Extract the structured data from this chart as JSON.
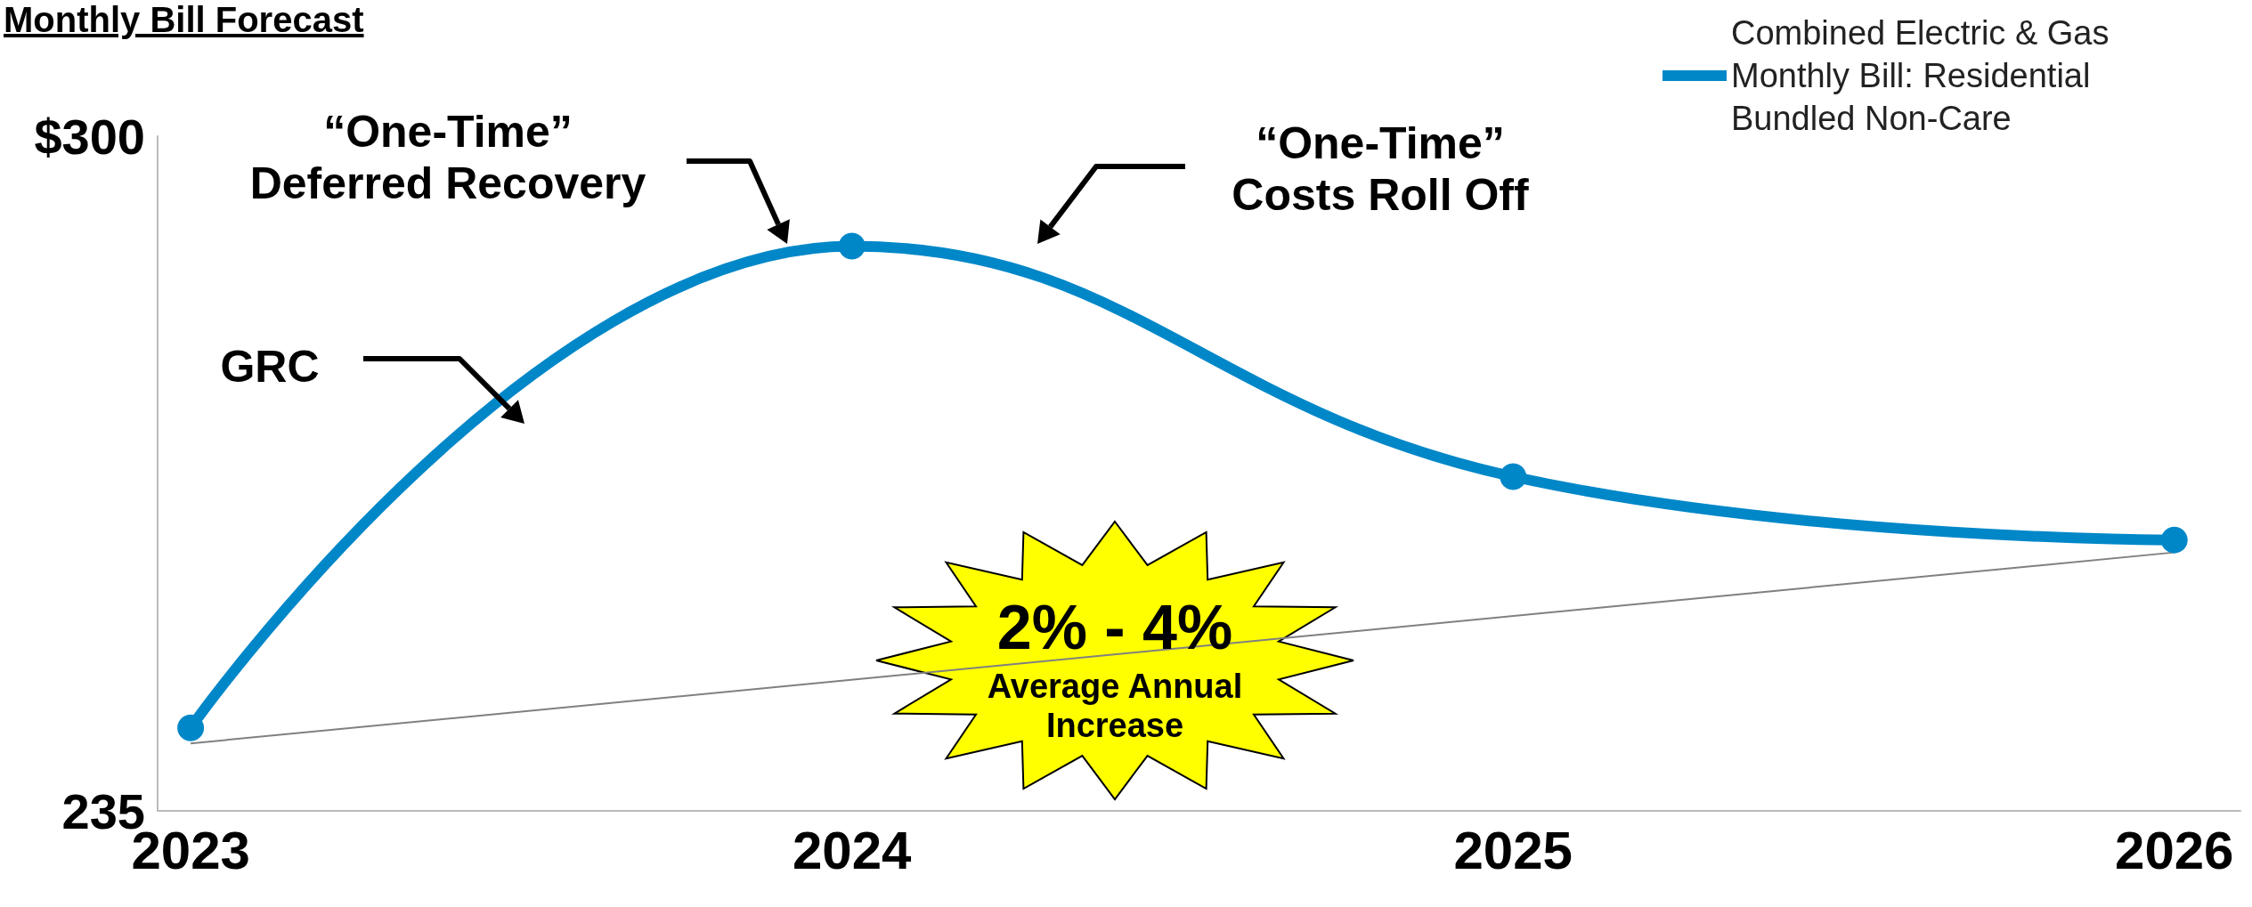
{
  "chart_data": {
    "type": "line",
    "title": "Monthly Bill Forecast",
    "x": [
      2023,
      2024,
      2025,
      2026
    ],
    "xlim": [
      2022.95,
      2026.1
    ],
    "xticks": [
      2023,
      2024,
      2025,
      2026
    ],
    "ylim": [
      235,
      300
    ],
    "yticks": [
      235,
      {
        "value": 300,
        "label": "$300"
      }
    ],
    "grid": false,
    "legend": "top right",
    "marker": "circle",
    "series": [
      {
        "name": "Combined Electric & Gas Monthly Bill: Residential Bundled Non-Care",
        "color": "#0087c8",
        "values": [
          243,
          289.4,
          267.2,
          261.1
        ]
      },
      {
        "type": "line",
        "color": "#808080",
        "x": [
          2023,
          2026
        ],
        "values": [
          241.5,
          259.9
        ],
        "marker": "none"
      }
    ],
    "annotations": [
      "“One-Time”\nDeferred Recovery",
      "“One-Time”\nCosts Roll Off",
      "GRC",
      "2% - 4%",
      "Average Annual\nIncrease"
    ]
  }
}
